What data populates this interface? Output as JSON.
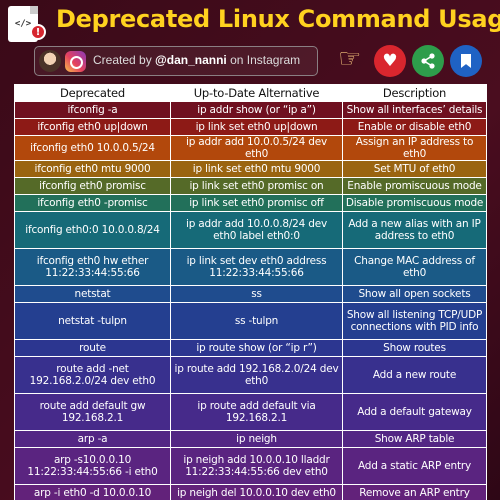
{
  "header": {
    "title": "Deprecated Linux Command Usage",
    "file_icon_glyph": "</>",
    "warning_glyph": "!",
    "credit_prefix": "Created by ",
    "credit_handle": "@dan_nanni",
    "credit_suffix": " on Instagram"
  },
  "actions": {
    "hand_glyph": "☞",
    "heart_glyph": "♥",
    "share_glyph": "⋖"
  },
  "table": {
    "headers": [
      "Deprecated",
      "Up-to-Date Alternative",
      "Description"
    ],
    "rows": [
      {
        "h": 17,
        "color": "#6f1020",
        "deprecated": "ifconfig -a",
        "alternative": "ip addr show (or “ip a”)",
        "description": "Show all interfaces’ details"
      },
      {
        "h": 17,
        "color": "#8d1a16",
        "deprecated": "ifconfig eth0 up|down",
        "alternative": "ip link set eth0 up|down",
        "description": "Enable or disable eth0"
      },
      {
        "h": 17,
        "color": "#b2480c",
        "deprecated": "ifconfig eth0 10.0.0.5/24",
        "alternative": "ip addr add 10.0.0.5/24  dev eth0",
        "description": "Assign an IP address to eth0"
      },
      {
        "h": 17,
        "color": "#9a6410",
        "deprecated": "ifconfig eth0 mtu 9000",
        "alternative": "ip link set eth0 mtu 9000",
        "description": "Set MTU of eth0"
      },
      {
        "h": 17,
        "color": "#556a28",
        "deprecated": "ifconfig eth0 promisc",
        "alternative": "ip link set eth0 promisc on",
        "description": "Enable promiscuous mode"
      },
      {
        "h": 17,
        "color": "#22705a",
        "deprecated": "ifconfig eth0 -promisc",
        "alternative": "ip link set eth0 promisc off",
        "description": "Disable promiscuous mode"
      },
      {
        "h": 37,
        "color": "#166a78",
        "deprecated": "ifconfig eth0:0 10.0.0.8/24",
        "alternative": "ip addr add 10.0.0.8/24 dev eth0 label eth0:0",
        "description": "Add a new alias with an IP address to eth0"
      },
      {
        "h": 37,
        "color": "#1a5a86",
        "deprecated": "ifconfig eth0 hw ether 11:22:33:44:55:66",
        "alternative": "ip link set dev eth0 address 11:22:33:44:55:66",
        "description": "Change MAC address of eth0"
      },
      {
        "h": 17,
        "color": "#1f4c8e",
        "deprecated": "netstat",
        "alternative": "ss",
        "description": "Show all open sockets"
      },
      {
        "h": 37,
        "color": "#243f90",
        "deprecated": "netstat -tulpn",
        "alternative": "ss -tulpn",
        "description": "Show all  listening TCP/UDP connections with PID info"
      },
      {
        "h": 17,
        "color": "#2c3690",
        "deprecated": "route",
        "alternative": "ip route show (or “ip r”)",
        "description": "Show routes"
      },
      {
        "h": 37,
        "color": "#38308e",
        "deprecated": "route add -net 192.168.2.0/24 dev eth0",
        "alternative": "ip route add 192.168.2.0/24 dev eth0",
        "description": "Add a new route"
      },
      {
        "h": 37,
        "color": "#462a8a",
        "deprecated": "route add default gw 192.168.2.1",
        "alternative": "ip route add default via 192.168.2.1",
        "description": "Add a default gateway"
      },
      {
        "h": 17,
        "color": "#532684",
        "deprecated": "arp -a",
        "alternative": "ip neigh",
        "description": "Show ARP table"
      },
      {
        "h": 37,
        "color": "#5a2480",
        "deprecated": "arp -s10.0.0.10 11:22:33:44:55:66 -i eth0",
        "alternative": "ip neigh add 10.0.0.10 lladdr 11:22:33:44:55:66 dev eth0",
        "description": "Add a static ARP entry"
      },
      {
        "h": 17,
        "color": "#62227a",
        "deprecated": "arp -i eth0 -d 10.0.0.10",
        "alternative": "ip neigh del 10.0.0.10 dev eth0",
        "description": "Remove an ARP entry"
      }
    ]
  }
}
